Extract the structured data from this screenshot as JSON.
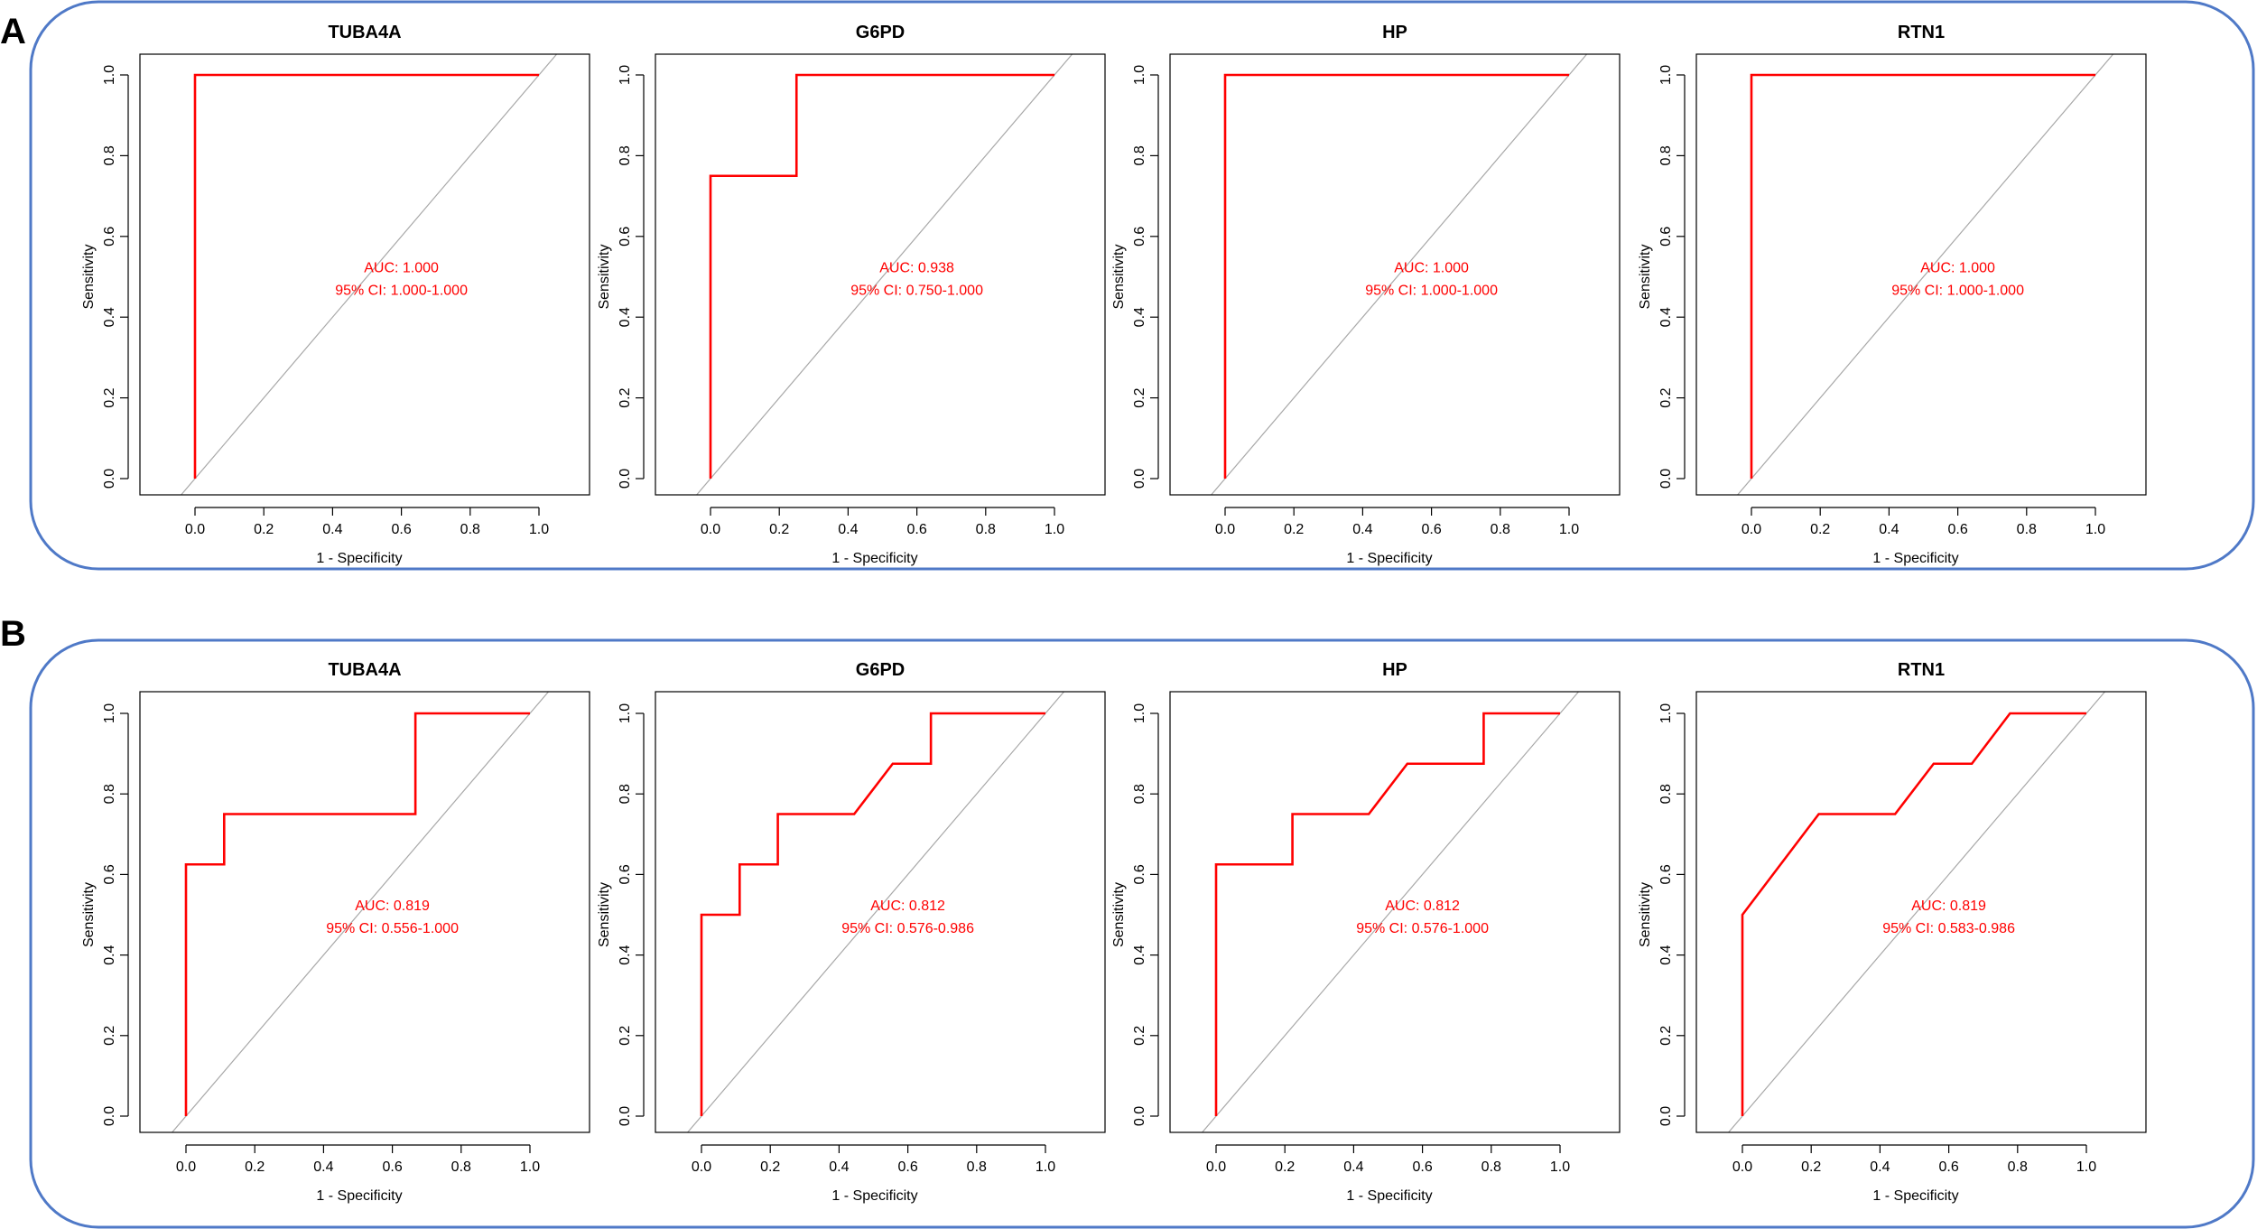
{
  "panels": [
    {
      "label": "A",
      "charts": [
        {
          "title": "TUBA4A",
          "auc_text": "AUC: 1.000",
          "ci_text": "95% CI: 1.000-1.000"
        },
        {
          "title": "G6PD",
          "auc_text": "AUC: 0.938",
          "ci_text": "95% CI: 0.750-1.000"
        },
        {
          "title": "HP",
          "auc_text": "AUC: 1.000",
          "ci_text": "95% CI: 1.000-1.000"
        },
        {
          "title": "RTN1",
          "auc_text": "AUC: 1.000",
          "ci_text": "95% CI: 1.000-1.000"
        }
      ]
    },
    {
      "label": "B",
      "charts": [
        {
          "title": "TUBA4A",
          "auc_text": "AUC: 0.819",
          "ci_text": "95% CI: 0.556-1.000"
        },
        {
          "title": "G6PD",
          "auc_text": "AUC: 0.812",
          "ci_text": "95% CI: 0.576-0.986"
        },
        {
          "title": "HP",
          "auc_text": "AUC: 0.812",
          "ci_text": "95% CI: 0.576-1.000"
        },
        {
          "title": "RTN1",
          "auc_text": "AUC: 0.819",
          "ci_text": "95% CI: 0.583-0.986"
        }
      ]
    }
  ],
  "colors": {
    "roc_line": "#ff0000",
    "reference_line": "#a8a8a8",
    "panel_border": "#4f79c7"
  },
  "chart_data": [
    {
      "panel": "A",
      "type": "line",
      "title": "TUBA4A",
      "xlabel": "1 - Specificity",
      "ylabel": "Sensitivity",
      "xlim": [
        0,
        1
      ],
      "ylim": [
        0,
        1
      ],
      "xticks": [
        "0.0",
        "0.2",
        "0.4",
        "0.6",
        "0.8",
        "1.0"
      ],
      "yticks": [
        "0.0",
        "0.2",
        "0.4",
        "0.6",
        "0.8",
        "1.0"
      ],
      "series": [
        {
          "x": [
            0,
            0,
            1
          ],
          "y": [
            0,
            1,
            1
          ]
        }
      ],
      "annotation": [
        "AUC: 1.000",
        "95% CI: 1.000-1.000"
      ]
    },
    {
      "panel": "A",
      "type": "line",
      "title": "G6PD",
      "xlabel": "1 - Specificity",
      "ylabel": "Sensitivity",
      "xlim": [
        0,
        1
      ],
      "ylim": [
        0,
        1
      ],
      "xticks": [
        "0.0",
        "0.2",
        "0.4",
        "0.6",
        "0.8",
        "1.0"
      ],
      "yticks": [
        "0.0",
        "0.2",
        "0.4",
        "0.6",
        "0.8",
        "1.0"
      ],
      "series": [
        {
          "x": [
            0,
            0,
            0.25,
            0.25,
            1
          ],
          "y": [
            0,
            0.75,
            0.75,
            1,
            1
          ]
        }
      ],
      "annotation": [
        "AUC: 0.938",
        "95% CI: 0.750-1.000"
      ]
    },
    {
      "panel": "A",
      "type": "line",
      "title": "HP",
      "xlabel": "1 - Specificity",
      "ylabel": "Sensitivity",
      "xlim": [
        0,
        1
      ],
      "ylim": [
        0,
        1
      ],
      "xticks": [
        "0.0",
        "0.2",
        "0.4",
        "0.6",
        "0.8",
        "1.0"
      ],
      "yticks": [
        "0.0",
        "0.2",
        "0.4",
        "0.6",
        "0.8",
        "1.0"
      ],
      "series": [
        {
          "x": [
            0,
            0,
            1
          ],
          "y": [
            0,
            1,
            1
          ]
        }
      ],
      "annotation": [
        "AUC: 1.000",
        "95% CI: 1.000-1.000"
      ]
    },
    {
      "panel": "A",
      "type": "line",
      "title": "RTN1",
      "xlabel": "1 - Specificity",
      "ylabel": "Sensitivity",
      "xlim": [
        0,
        1
      ],
      "ylim": [
        0,
        1
      ],
      "xticks": [
        "0.0",
        "0.2",
        "0.4",
        "0.6",
        "0.8",
        "1.0"
      ],
      "yticks": [
        "0.0",
        "0.2",
        "0.4",
        "0.6",
        "0.8",
        "1.0"
      ],
      "series": [
        {
          "x": [
            0,
            0,
            1
          ],
          "y": [
            0,
            1,
            1
          ]
        }
      ],
      "annotation": [
        "AUC: 1.000",
        "95% CI: 1.000-1.000"
      ]
    },
    {
      "panel": "B",
      "type": "line",
      "title": "TUBA4A",
      "xlabel": "1 - Specificity",
      "ylabel": "Sensitivity",
      "xlim": [
        0,
        1
      ],
      "ylim": [
        0,
        1
      ],
      "xticks": [
        "0.0",
        "0.2",
        "0.4",
        "0.6",
        "0.8",
        "1.0"
      ],
      "yticks": [
        "0.0",
        "0.2",
        "0.4",
        "0.6",
        "0.8",
        "1.0"
      ],
      "series": [
        {
          "x": [
            0,
            0,
            0.111,
            0.111,
            0.667,
            0.667,
            1
          ],
          "y": [
            0,
            0.625,
            0.625,
            0.75,
            0.75,
            1,
            1
          ]
        }
      ],
      "annotation": [
        "AUC: 0.819",
        "95% CI: 0.556-1.000"
      ]
    },
    {
      "panel": "B",
      "type": "line",
      "title": "G6PD",
      "xlabel": "1 - Specificity",
      "ylabel": "Sensitivity",
      "xlim": [
        0,
        1
      ],
      "ylim": [
        0,
        1
      ],
      "xticks": [
        "0.0",
        "0.2",
        "0.4",
        "0.6",
        "0.8",
        "1.0"
      ],
      "yticks": [
        "0.0",
        "0.2",
        "0.4",
        "0.6",
        "0.8",
        "1.0"
      ],
      "series": [
        {
          "x": [
            0,
            0,
            0.111,
            0.111,
            0.222,
            0.222,
            0.444,
            0.556,
            0.667,
            0.667,
            1
          ],
          "y": [
            0,
            0.5,
            0.5,
            0.625,
            0.625,
            0.75,
            0.75,
            0.875,
            0.875,
            1,
            1
          ]
        }
      ],
      "annotation": [
        "AUC: 0.812",
        "95% CI: 0.576-0.986"
      ]
    },
    {
      "panel": "B",
      "type": "line",
      "title": "HP",
      "xlabel": "1 - Specificity",
      "ylabel": "Sensitivity",
      "xlim": [
        0,
        1
      ],
      "ylim": [
        0,
        1
      ],
      "xticks": [
        "0.0",
        "0.2",
        "0.4",
        "0.6",
        "0.8",
        "1.0"
      ],
      "yticks": [
        "0.0",
        "0.2",
        "0.4",
        "0.6",
        "0.8",
        "1.0"
      ],
      "series": [
        {
          "x": [
            0,
            0,
            0.222,
            0.222,
            0.444,
            0.556,
            0.778,
            0.778,
            1
          ],
          "y": [
            0,
            0.625,
            0.625,
            0.75,
            0.75,
            0.875,
            0.875,
            1,
            1
          ]
        }
      ],
      "annotation": [
        "AUC: 0.812",
        "95% CI: 0.576-1.000"
      ]
    },
    {
      "panel": "B",
      "type": "line",
      "title": "RTN1",
      "xlabel": "1 - Specificity",
      "ylabel": "Sensitivity",
      "xlim": [
        0,
        1
      ],
      "ylim": [
        0,
        1
      ],
      "xticks": [
        "0.0",
        "0.2",
        "0.4",
        "0.6",
        "0.8",
        "1.0"
      ],
      "yticks": [
        "0.0",
        "0.2",
        "0.4",
        "0.6",
        "0.8",
        "1.0"
      ],
      "series": [
        {
          "x": [
            0,
            0,
            0.222,
            0.444,
            0.556,
            0.667,
            0.778,
            1
          ],
          "y": [
            0,
            0.5,
            0.75,
            0.75,
            0.875,
            0.875,
            1,
            1
          ]
        }
      ],
      "annotation": [
        "AUC: 0.819",
        "95% CI: 0.583-0.986"
      ]
    }
  ]
}
